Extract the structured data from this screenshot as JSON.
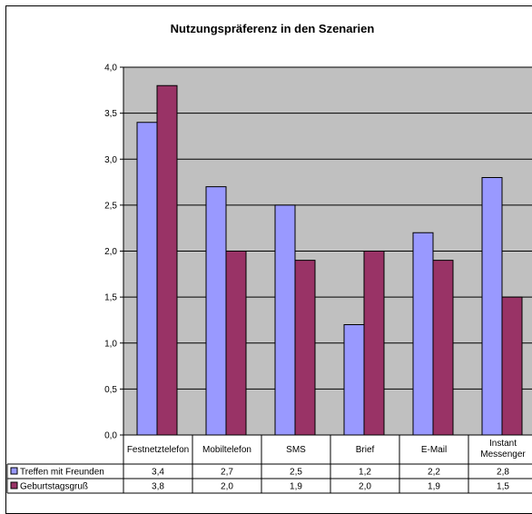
{
  "chart_data": {
    "type": "bar",
    "title": "Nutzungspräferenz in den Szenarien",
    "categories": [
      "Festnetztelefon",
      "Mobiltelefon",
      "SMS",
      "Brief",
      "E-Mail",
      "Instant Messenger"
    ],
    "series": [
      {
        "name": "Treffen mit Freunden",
        "values": [
          3.4,
          2.7,
          2.5,
          1.2,
          2.2,
          2.8
        ],
        "labels": [
          "3,4",
          "2,7",
          "2,5",
          "1,2",
          "2,2",
          "2,8"
        ],
        "color": "#9999ff"
      },
      {
        "name": "Geburtstagsgruß",
        "values": [
          3.8,
          2.0,
          1.9,
          2.0,
          1.9,
          1.5
        ],
        "labels": [
          "3,8",
          "2,0",
          "1,9",
          "2,0",
          "1,9",
          "1,5"
        ],
        "color": "#993366"
      }
    ],
    "ylim": [
      0,
      4
    ],
    "yticks": [
      0,
      0.5,
      1.0,
      1.5,
      2.0,
      2.5,
      3.0,
      3.5,
      4.0
    ],
    "ytick_labels": [
      "0,0",
      "0,5",
      "1,0",
      "1,5",
      "2,0",
      "2,5",
      "3,0",
      "3,5",
      "4,0"
    ],
    "grid": true,
    "plot_background": "#c0c0c0",
    "legend": "data-table"
  }
}
